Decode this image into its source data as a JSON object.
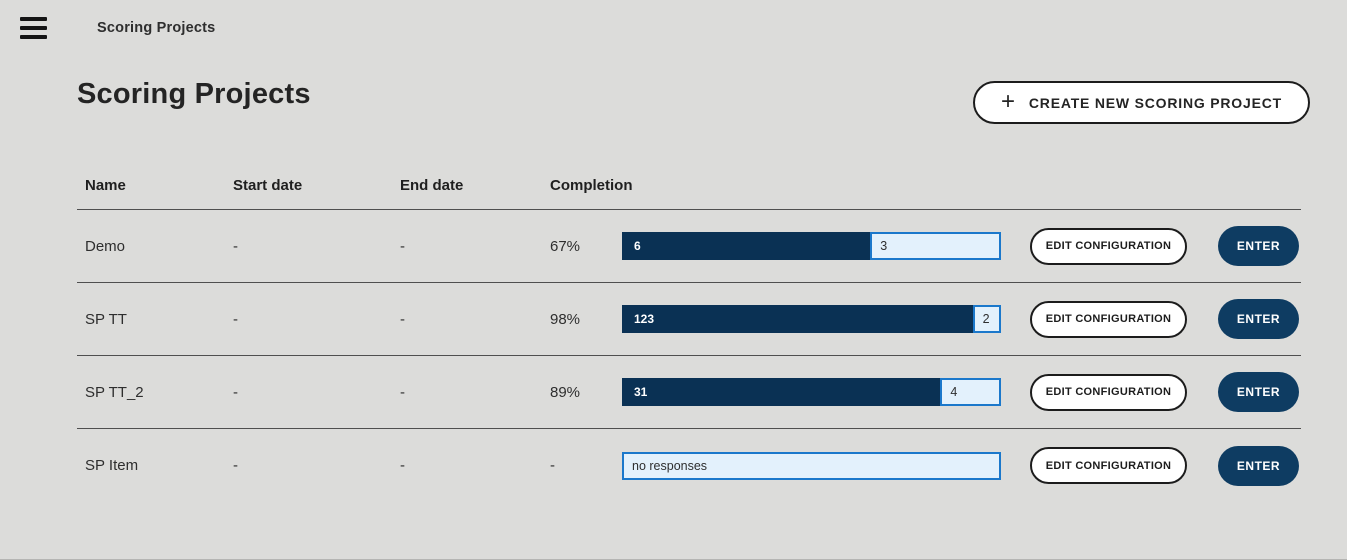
{
  "colors": {
    "background": "#dcdcda",
    "navy_dark": "#0a3154",
    "navy_button": "#0e3c62",
    "bar_light_fill": "#e3f1fc",
    "bar_border": "#1b78cb"
  },
  "topbar": {
    "title": "Scoring Projects",
    "menu_icon": "hamburger-icon"
  },
  "header": {
    "title": "Scoring Projects",
    "create_button_label": "CREATE NEW SCORING PROJECT",
    "plus_icon": "+"
  },
  "table": {
    "columns": [
      "Name",
      "Start date",
      "End date",
      "Completion"
    ],
    "actions": {
      "edit": "EDIT CONFIGURATION",
      "enter": "ENTER"
    },
    "rows": [
      {
        "name": "Demo",
        "start_date": "-",
        "end_date": "-",
        "completion": "67%",
        "bar": {
          "done": "6",
          "remaining": "3",
          "fill_pct": 65.5
        }
      },
      {
        "name": "SP TT",
        "start_date": "-",
        "end_date": "-",
        "completion": "98%",
        "bar": {
          "done": "123",
          "remaining": "2",
          "fill_pct": 92.5
        }
      },
      {
        "name": "SP TT_2",
        "start_date": "-",
        "end_date": "-",
        "completion": "89%",
        "bar": {
          "done": "31",
          "remaining": "4",
          "fill_pct": 84
        }
      },
      {
        "name": "SP Item",
        "start_date": "-",
        "end_date": "-",
        "completion": "-",
        "bar": {
          "done": "",
          "remaining": "no responses",
          "fill_pct": 0
        }
      }
    ]
  }
}
